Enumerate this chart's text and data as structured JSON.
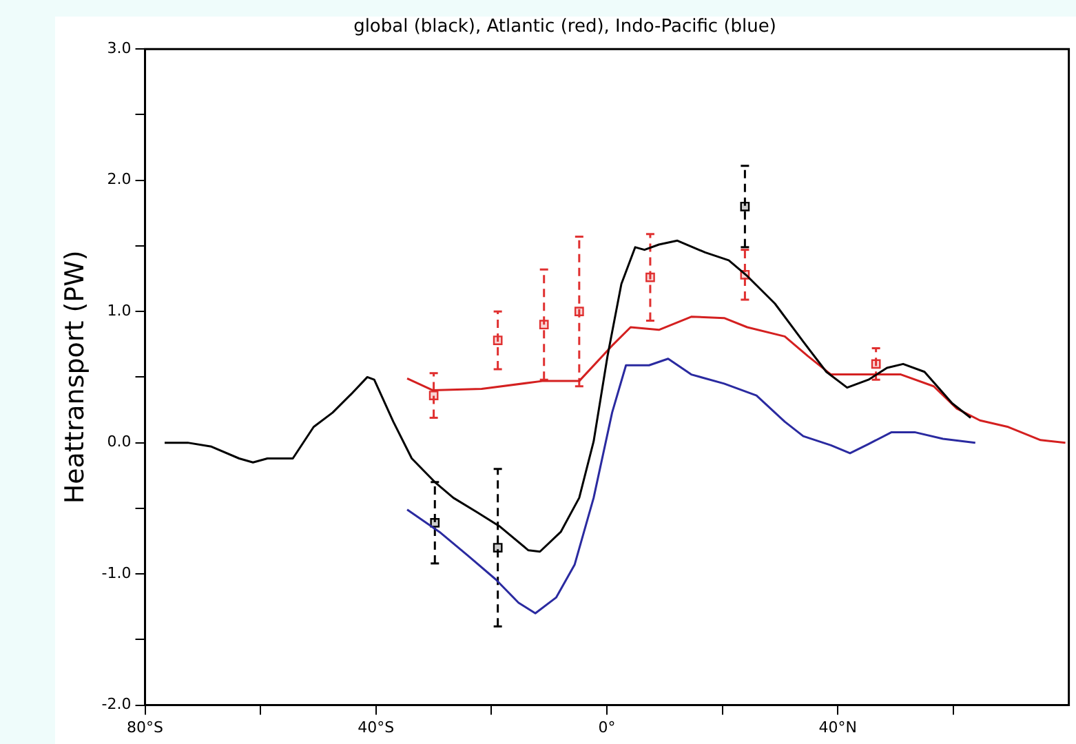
{
  "chart_data": {
    "type": "line",
    "title": "global (black), Atlantic (red), Indo-Pacific (blue)",
    "ylabel": "Heattransport (PW)",
    "xlim": [
      -80,
      80
    ],
    "ylim": [
      -2,
      3
    ],
    "xticks": [
      {
        "value": -80,
        "label": "80°S"
      },
      {
        "value": -60,
        "label": null
      },
      {
        "value": -40,
        "label": "40°S"
      },
      {
        "value": -20,
        "label": null
      },
      {
        "value": 0,
        "label": "0°"
      },
      {
        "value": 20,
        "label": null
      },
      {
        "value": 40,
        "label": "40°N"
      },
      {
        "value": 60,
        "label": null
      }
    ],
    "yticks": [
      {
        "value": -2,
        "label": "-2.0"
      },
      {
        "value": -1.5,
        "label": null
      },
      {
        "value": -1,
        "label": "-1.0"
      },
      {
        "value": -0.5,
        "label": null
      },
      {
        "value": 0,
        "label": "0.0"
      },
      {
        "value": 0.5,
        "label": null
      },
      {
        "value": 1,
        "label": "1.0"
      },
      {
        "value": 1.5,
        "label": null
      },
      {
        "value": 2,
        "label": "2.0"
      },
      {
        "value": 2.5,
        "label": null
      },
      {
        "value": 3,
        "label": "3.0"
      }
    ],
    "series": [
      {
        "type": "line",
        "color": "#000000",
        "x": [
          -76.6,
          -72.6,
          -68.5,
          -63.7,
          -61.3,
          -58.8,
          -54.4,
          -50.8,
          -47.5,
          -44.3,
          -41.5,
          -40.3,
          -37.0,
          -33.8,
          -29.8,
          -26.6,
          -22.5,
          -18.5,
          -13.6,
          -11.6,
          -8.0,
          -4.8,
          -2.3,
          0.1,
          2.5,
          4.9,
          6.5,
          9.0,
          12.2,
          17.0,
          21.1,
          24.3,
          29.1,
          34.0,
          38.0,
          41.6,
          45.3,
          48.5,
          51.3,
          55.0,
          59.8,
          63.0
        ],
        "values": [
          0,
          0,
          -0.03,
          -0.12,
          -0.15,
          -0.12,
          -0.12,
          0.12,
          0.23,
          0.37,
          0.5,
          0.48,
          0.16,
          -0.12,
          -0.3,
          -0.42,
          -0.53,
          -0.64,
          -0.82,
          -0.83,
          -0.68,
          -0.42,
          0.01,
          0.66,
          1.21,
          1.49,
          1.47,
          1.51,
          1.54,
          1.45,
          1.39,
          1.27,
          1.06,
          0.77,
          0.54,
          0.42,
          0.48,
          0.57,
          0.6,
          0.54,
          0.3,
          0.19
        ]
      },
      {
        "type": "line",
        "color": "#d42020",
        "x": [
          -34.6,
          -30.2,
          -21.7,
          -11.2,
          -4.8,
          0.9,
          4.1,
          9.0,
          14.6,
          20.3,
          24.3,
          30.8,
          34.8,
          38.8,
          43.7,
          50.9,
          56.6,
          60.6,
          64.6,
          69.5,
          75.1,
          79.4
        ],
        "values": [
          0.49,
          0.4,
          0.41,
          0.47,
          0.47,
          0.74,
          0.88,
          0.86,
          0.96,
          0.95,
          0.88,
          0.81,
          0.66,
          0.52,
          0.52,
          0.52,
          0.43,
          0.26,
          0.17,
          0.12,
          0.02,
          0
        ]
      },
      {
        "type": "line",
        "color": "#2a2aa0",
        "x": [
          -34.6,
          -29.0,
          -24.1,
          -19.3,
          -15.3,
          -12.4,
          -8.8,
          -5.6,
          -2.3,
          0.9,
          3.3,
          7.3,
          10.6,
          14.6,
          20.3,
          25.9,
          30.8,
          34.0,
          38.8,
          42.1,
          45.3,
          49.3,
          53.3,
          58.2,
          63.8
        ],
        "values": [
          -0.51,
          -0.68,
          -0.86,
          -1.04,
          -1.22,
          -1.3,
          -1.18,
          -0.93,
          -0.42,
          0.23,
          0.59,
          0.59,
          0.64,
          0.52,
          0.45,
          0.36,
          0.16,
          0.05,
          -0.02,
          -0.08,
          -0.01,
          0.08,
          0.08,
          0.03,
          0
        ]
      },
      {
        "type": "scatter",
        "color": "#e03030",
        "marker": "square",
        "line_style": "dashed",
        "x": [
          -30,
          -18.9,
          -10.9,
          -4.8,
          7.5,
          23.9,
          46.6
        ],
        "values": [
          0.36,
          0.78,
          0.9,
          1.0,
          1.26,
          1.28,
          0.6
        ],
        "errors": [
          0.17,
          0.22,
          0.42,
          0.57,
          0.33,
          0.19,
          0.12
        ]
      },
      {
        "type": "scatter",
        "color": "#000000",
        "marker": "square",
        "line_style": "dashed",
        "x": [
          -29.8,
          -18.9,
          23.9
        ],
        "values": [
          -0.61,
          -0.8,
          1.8
        ],
        "errors": [
          0.31,
          0.6,
          0.31
        ]
      }
    ]
  }
}
